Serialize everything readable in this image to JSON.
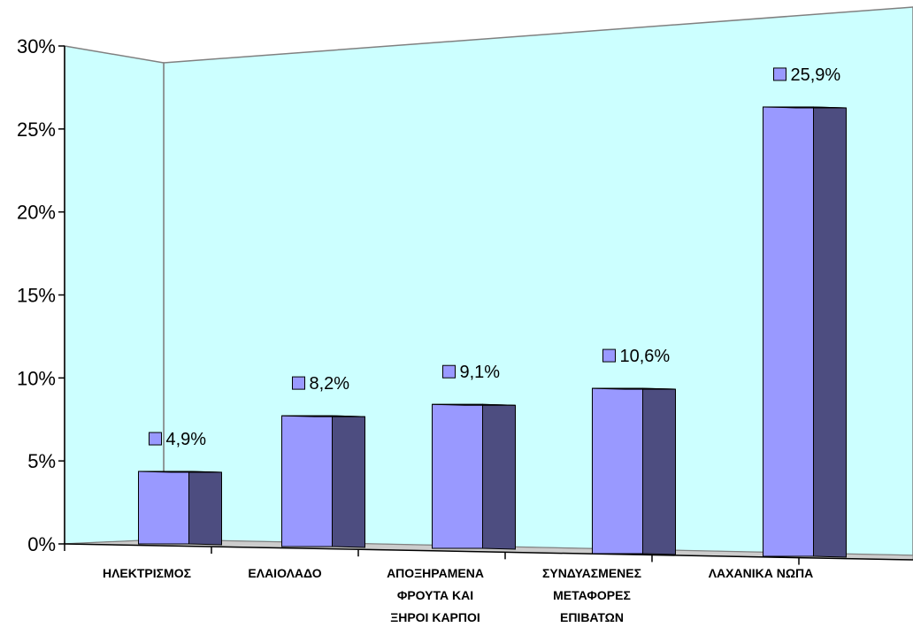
{
  "chart_data": {
    "type": "bar",
    "categories": [
      [
        "ΗΛΕΚΤΡΙΣΜΟΣ"
      ],
      [
        "ΕΛΑΙΟΛΑΔΟ"
      ],
      [
        "ΑΠΟΞΗΡΑΜΕΝΑ",
        "ΦΡΟΥΤΑ ΚΑΙ",
        "ΞΗΡΟΙ ΚΑΡΠΟΙ"
      ],
      [
        "ΣΥΝΔΥΑΣΜΕΝΕΣ",
        "ΜΕΤΑΦΟΡΕΣ",
        "ΕΠΙΒΑΤΩΝ"
      ],
      [
        "ΛΑΧΑΝΙΚΑ ΝΩΠΑ"
      ]
    ],
    "values": [
      4.9,
      8.2,
      9.1,
      10.6,
      25.9
    ],
    "data_labels": [
      "4,9%",
      "8,2%",
      "9,1%",
      "10,6%",
      "25,9%"
    ],
    "ylim": [
      0,
      30
    ],
    "yticks": [
      0,
      5,
      10,
      15,
      20,
      25,
      30
    ],
    "ytick_labels": [
      "0%",
      "5%",
      "10%",
      "15%",
      "20%",
      "25%",
      "30%"
    ],
    "title": "",
    "xlabel": "",
    "ylabel": "",
    "grid": false,
    "legend": "none",
    "colors": {
      "bar_front": "#9999ff",
      "bar_side": "#4d4d80",
      "bar_top": "#b3b3ff",
      "wall": "#ccffff",
      "floor": "#cccccc",
      "label_marker": "#9999ff"
    }
  }
}
